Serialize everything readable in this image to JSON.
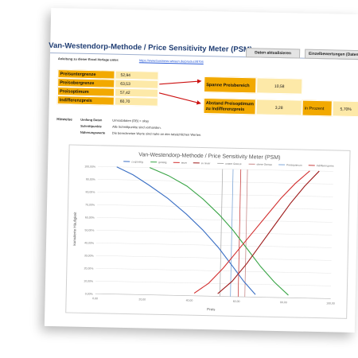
{
  "header": {
    "title": "Van-Westendorp-Methode / Price Sensitivity Meter (PSM)",
    "update_button": "Daten aktualisieren",
    "single_button": "Einzelbewertungen (Daten)"
  },
  "instructions": {
    "label": "Anleitung zu dieser Excel-Vorlage unter:",
    "url": "https://www.business-wissen.de/product/8706"
  },
  "price_table": [
    {
      "label": "Preisuntergrenze",
      "value": "52,94"
    },
    {
      "label": "Preisobergrenze",
      "value": "63,53"
    },
    {
      "label": "Preisoptimum",
      "value": "57,42"
    },
    {
      "label": "Indifferenzpreis",
      "value": "60,70"
    }
  ],
  "spanne": {
    "label": "Spanne Preisbereich",
    "value": "10,58"
  },
  "abstand": {
    "label": "Abstand Preisoptimum zu Indifferenzpreis",
    "value": "3,28",
    "percent_label": "in Prozent",
    "percent_value": "5,70%"
  },
  "notes": {
    "heading": "Hinweise",
    "items": [
      {
        "key": "Umfang Daten",
        "text": "Umsatzdaten (DB) = okay"
      },
      {
        "key": "Schnittpunkte",
        "text": "Alle Schnittpunkte sind vorhanden."
      },
      {
        "key": "Näherungswerte",
        "text": "Die berechneten Werte sind nahe an den tatsächlichen Werten."
      }
    ]
  },
  "colors": {
    "orange": "#f2a900",
    "light_orange": "#fde9a8",
    "title_blue": "#1f3d73",
    "red_arrow": "#cc1111"
  },
  "chart_data": {
    "type": "line",
    "title": "Van-Westendorp-Methode / Price Sensitivity Meter (PSM)",
    "xlabel": "Preis",
    "ylabel": "kumulierte Häufigkeit",
    "xlim": [
      0,
      100
    ],
    "ylim": [
      0,
      100
    ],
    "x_ticks": [
      "0,00",
      "20,00",
      "40,00",
      "60,00",
      "80,00",
      "100,00"
    ],
    "y_ticks": [
      "0,00%",
      "10,00%",
      "20,00%",
      "30,00%",
      "40,00%",
      "50,00%",
      "60,00%",
      "70,00%",
      "80,00%",
      "90,00%",
      "100,00%"
    ],
    "legend_position": "top",
    "grid": true,
    "series": [
      {
        "name": "zu günstig",
        "color": "#3a6fc4",
        "x": [
          8,
          15,
          22,
          30,
          38,
          45,
          52,
          58,
          63,
          68
        ],
        "y": [
          100,
          94,
          86,
          76,
          64,
          52,
          38,
          24,
          12,
          2
        ]
      },
      {
        "name": "günstig",
        "color": "#3aa547",
        "x": [
          22,
          30,
          38,
          45,
          52,
          58,
          64,
          70,
          76,
          82
        ],
        "y": [
          100,
          94,
          86,
          76,
          64,
          52,
          38,
          24,
          12,
          2
        ]
      },
      {
        "name": "teuer",
        "color": "#d22f2f",
        "x": [
          42,
          48,
          54,
          60,
          66,
          72,
          78,
          84,
          90
        ],
        "y": [
          2,
          10,
          22,
          36,
          50,
          64,
          78,
          90,
          100
        ]
      },
      {
        "name": "zu teuer",
        "color": "#9e1b1b",
        "x": [
          52,
          58,
          64,
          70,
          76,
          82,
          88,
          94
        ],
        "y": [
          2,
          12,
          26,
          42,
          58,
          74,
          88,
          100
        ]
      }
    ],
    "markers": [
      {
        "name": "untere Grenze",
        "x": 52.94,
        "color": "#b0b0b0"
      },
      {
        "name": "obere Grenze",
        "x": 63.53,
        "color": "#c88b8b"
      },
      {
        "name": "Preisoptimum",
        "x": 57.42,
        "color": "#7fa7d8"
      },
      {
        "name": "Indifferenzpreis",
        "x": 60.7,
        "color": "#c94040"
      }
    ]
  }
}
